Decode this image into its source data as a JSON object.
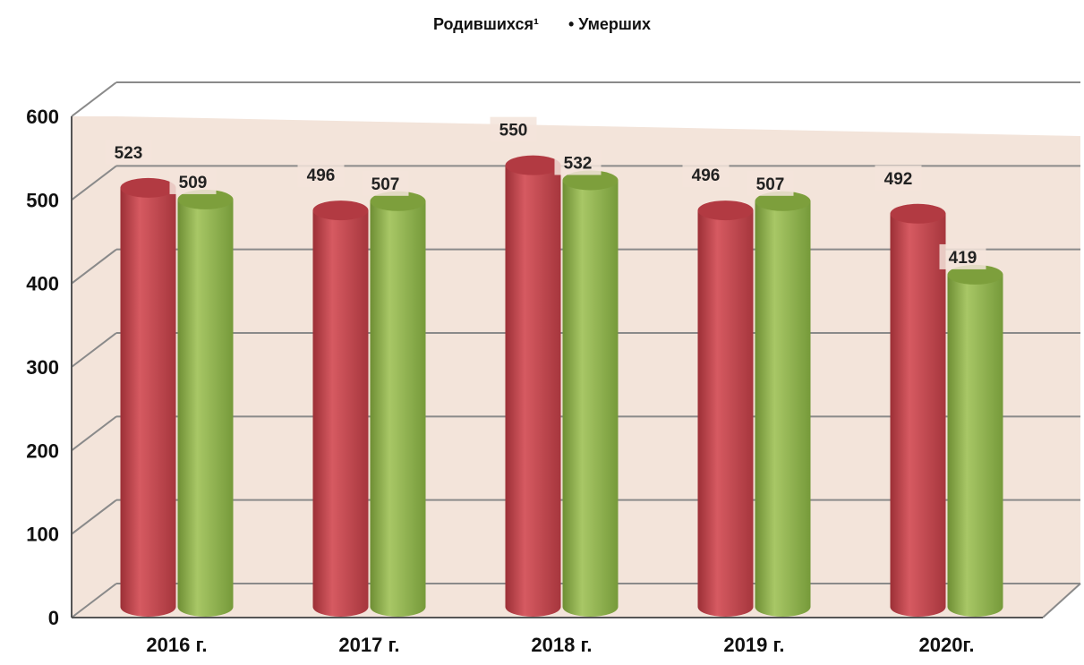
{
  "legend": {
    "births_label": "Родившихся¹",
    "deaths_label": "• Умерших"
  },
  "chart_data": {
    "type": "bar",
    "title": "",
    "xlabel": "",
    "ylabel": "",
    "categories": [
      "2016 г.",
      "2017 г.",
      "2018 г.",
      "2019 г.",
      "2020г."
    ],
    "series": [
      {
        "name": "Родившихся¹",
        "values": [
          523,
          496,
          550,
          496,
          492
        ],
        "color": "#c8454c"
      },
      {
        "name": "Умерших",
        "values": [
          509,
          507,
          532,
          507,
          419
        ],
        "color": "#8eb14a"
      }
    ],
    "ylim": [
      0,
      600
    ],
    "yticks": [
      "0",
      "100",
      "200",
      "300",
      "400",
      "500",
      "600"
    ],
    "grid": true,
    "legend_position": "top",
    "plot_background": "#f3e4da",
    "gridline_color": "#8a8a8a"
  }
}
